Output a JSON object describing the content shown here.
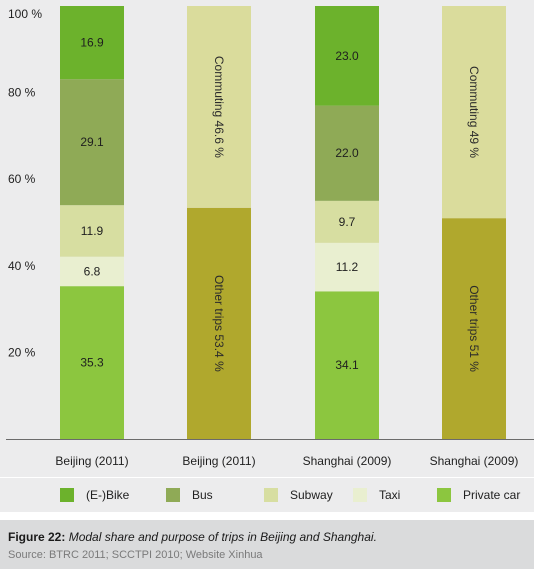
{
  "chart_data": {
    "type": "bar",
    "stacked": true,
    "categories": [
      "Beijing (2011)",
      "Beijing (2011)",
      "Shanghai (2009)",
      "Shanghai (2009)"
    ],
    "ylim": [
      0,
      100
    ],
    "yticks": [
      {
        "value": 100,
        "label": "100 %"
      },
      {
        "value": 80,
        "label": "80 %"
      },
      {
        "value": 60,
        "label": "60 %"
      },
      {
        "value": 40,
        "label": "40 %"
      },
      {
        "value": 20,
        "label": "20 %"
      }
    ],
    "grid": false,
    "legend_position": "bottom",
    "bars": [
      {
        "category": "Beijing (2011)",
        "segments": [
          {
            "series": "Private car",
            "value": 35.3,
            "label": "35.3",
            "color": "#8cc63f"
          },
          {
            "series": "Taxi",
            "value": 6.8,
            "label": "6.8",
            "color": "#e9efd0"
          },
          {
            "series": "Subway",
            "value": 11.9,
            "label": "11.9",
            "color": "#d7dea1"
          },
          {
            "series": "Bus",
            "value": 29.1,
            "label": "29.1",
            "color": "#8faa56"
          },
          {
            "series": "(E-)Bike",
            "value": 16.9,
            "label": "16.9",
            "color": "#6cb22c"
          }
        ]
      },
      {
        "category": "Beijing (2011)",
        "segments": [
          {
            "series": "Other trips",
            "value": 53.4,
            "label": "Other trips 53.4 %",
            "color": "#b0a82d",
            "vertical": true
          },
          {
            "series": "Commuting",
            "value": 46.6,
            "label": "Commuting 46.6 %",
            "color": "#dadc9c",
            "vertical": true
          }
        ]
      },
      {
        "category": "Shanghai (2009)",
        "segments": [
          {
            "series": "Private car",
            "value": 34.1,
            "label": "34.1",
            "color": "#8cc63f"
          },
          {
            "series": "Taxi",
            "value": 11.2,
            "label": "11.2",
            "color": "#e9efd0"
          },
          {
            "series": "Subway",
            "value": 9.7,
            "label": "9.7",
            "color": "#d7dea1"
          },
          {
            "series": "Bus",
            "value": 22.0,
            "label": "22.0",
            "color": "#8faa56"
          },
          {
            "series": "(E-)Bike",
            "value": 23.0,
            "label": "23.0",
            "color": "#6cb22c"
          }
        ]
      },
      {
        "category": "Shanghai (2009)",
        "segments": [
          {
            "series": "Other trips",
            "value": 51,
            "label": "Other trips 51 %",
            "color": "#b0a82d",
            "vertical": true
          },
          {
            "series": "Commuting",
            "value": 49,
            "label": "Commuting 49 %",
            "color": "#dadc9c",
            "vertical": true
          }
        ]
      }
    ],
    "legend": [
      {
        "label": "(E-)Bike",
        "color": "#6cb22c"
      },
      {
        "label": "Bus",
        "color": "#8faa56"
      },
      {
        "label": "Subway",
        "color": "#d7dea1"
      },
      {
        "label": "Taxi",
        "color": "#e9efd0"
      },
      {
        "label": "Private car",
        "color": "#8cc63f"
      }
    ]
  },
  "caption": {
    "label": "Figure 22:",
    "text": " Modal share and purpose of trips in Beijing and Shanghai.",
    "source": "Source: BTRC 2011; SCCTPI 2010; Website Xinhua"
  }
}
